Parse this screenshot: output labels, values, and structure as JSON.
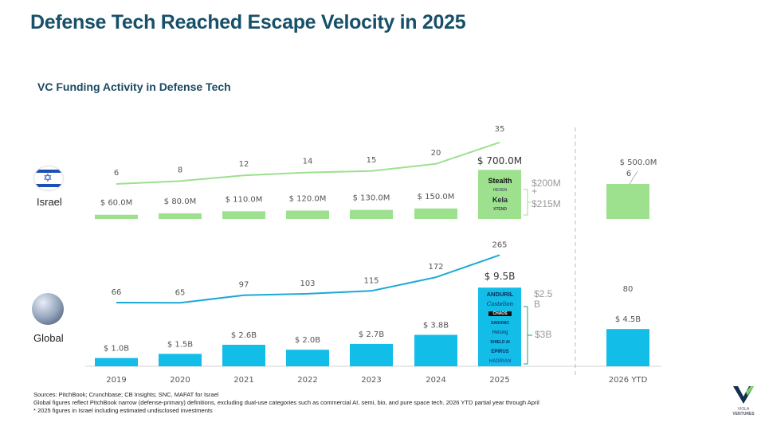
{
  "title": "Defense Tech Reached Escape Velocity in 2025",
  "subtitle": "VC Funding Activity in Defense Tech",
  "rows": {
    "israel": "Israel",
    "global": "Global"
  },
  "colors": {
    "israel": "#9de08e",
    "israel_line": "#9de08e",
    "global": "#12bde8",
    "global_line": "#1aa9d6",
    "title": "#17506a"
  },
  "chart_data": {
    "type": "bar+line",
    "categories": [
      "2019",
      "2020",
      "2021",
      "2022",
      "2023",
      "2024",
      "2025",
      "2026 YTD"
    ],
    "series": [
      {
        "name": "Israel",
        "kind": "bar",
        "unit": "$M",
        "values": [
          60,
          80,
          110,
          120,
          130,
          150,
          700,
          500
        ],
        "labels": [
          "$ 60.0M",
          "$ 80.0M",
          "$ 110.0M",
          "$ 120.0M",
          "$ 130.0M",
          "$ 150.0M",
          "$ 700.0M",
          "$ 500.0M"
        ]
      },
      {
        "name": "Israel",
        "kind": "line",
        "values": [
          6,
          8,
          12,
          14,
          15,
          20,
          35,
          6
        ],
        "labels": [
          "6",
          "8",
          "12",
          "14",
          "15",
          "20",
          "35",
          "6"
        ]
      },
      {
        "name": "Global",
        "kind": "bar",
        "unit": "$B",
        "values": [
          1.0,
          1.5,
          2.6,
          2.0,
          2.7,
          3.8,
          9.5,
          4.5
        ],
        "labels": [
          "$ 1.0B",
          "$ 1.5B",
          "$ 2.6B",
          "$ 2.0B",
          "$ 2.7B",
          "$ 3.8B",
          "$ 9.5B",
          "$ 4.5B"
        ]
      },
      {
        "name": "Global",
        "kind": "line",
        "values": [
          66,
          65,
          97,
          103,
          115,
          172,
          265,
          80
        ],
        "labels": [
          "66",
          "65",
          "97",
          "103",
          "115",
          "172",
          "265",
          "80"
        ]
      }
    ],
    "grid": false
  },
  "annotations": {
    "israel_2025_logos": [
      "Stealth",
      "HEVEN",
      "Kela",
      "XTEND"
    ],
    "israel_bracket_top": "$200M",
    "israel_bracket_plus": "+",
    "israel_bracket_bottom": "$215M",
    "global_2025_logos": [
      "ANDURIL",
      "Castelion",
      "CHAOS",
      "SARONIC",
      "Helsing",
      "SHIELD AI",
      "EPIRUS",
      "HADRIAN"
    ],
    "global_bracket_top": "$2.5 B",
    "global_bracket_bottom": "$3B"
  },
  "notes": [
    "Sources: PitchBook; Crunchbase; CB Insights; SNC, MAFAT for Israel",
    "Global figures reflect PitchBook narrow (defense-primary) definitions, excluding dual-use categories such as commercial AI, semi, bio, and pure space tech. 2026 YTD partial year through April",
    "* 2025 figures in Israel including estimated undisclosed investments"
  ],
  "logo": {
    "line1": "VIOLA",
    "line2": "VENTURES"
  }
}
